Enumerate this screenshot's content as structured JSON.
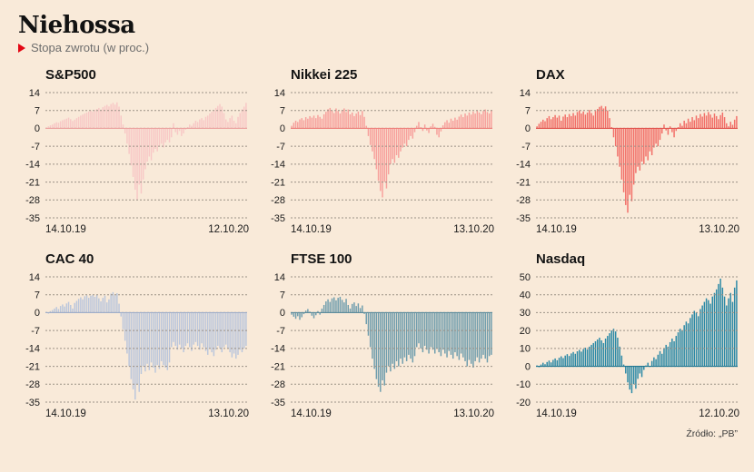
{
  "page": {
    "title": "Niehossa",
    "subtitle": "Stopa zwrotu (w proc.)",
    "source": "Źródło: „PB”",
    "background": "#f9ead9",
    "accent": "#e30613",
    "gridline_color": "#9b9186"
  },
  "chart_data": [
    {
      "type": "bar",
      "title": "S&P500",
      "x_start": "14.10.19",
      "x_end": "12.10.20",
      "ylabel": "",
      "yticks": [
        14,
        7,
        0,
        -7,
        -14,
        -21,
        -28,
        -35
      ],
      "ylim": [
        -35,
        14
      ],
      "grid": true,
      "color": "#f8c8c6",
      "baseline_color": "#eca3a0",
      "values": [
        0.3,
        0.8,
        1.2,
        1.5,
        2.0,
        2.4,
        2.2,
        2.8,
        3.2,
        3.5,
        3.8,
        4.2,
        3.6,
        2.9,
        3.4,
        4.0,
        4.5,
        5.0,
        5.4,
        5.8,
        6.2,
        6.6,
        7.0,
        6.5,
        7.2,
        7.6,
        8.0,
        7.4,
        8.3,
        8.8,
        9.2,
        8.6,
        9.5,
        10.0,
        9.3,
        10.2,
        8.5,
        5.0,
        1.5,
        -2.0,
        -6.0,
        -10.0,
        -14.5,
        -19.0,
        -24.0,
        -28.0,
        -22.0,
        -25.5,
        -20.0,
        -16.0,
        -13.0,
        -11.0,
        -12.5,
        -9.5,
        -8.0,
        -9.0,
        -7.0,
        -6.0,
        -7.5,
        -5.5,
        -4.5,
        -5.5,
        -3.5,
        2.0,
        -1.5,
        -2.5,
        -1.0,
        -3.0,
        -2.0,
        -0.5,
        0.5,
        1.5,
        1.0,
        2.0,
        3.0,
        2.5,
        3.5,
        4.0,
        3.2,
        4.5,
        5.0,
        5.8,
        6.5,
        7.2,
        8.0,
        8.8,
        9.5,
        8.5,
        6.0,
        3.5,
        2.5,
        4.0,
        5.0,
        3.0,
        2.0,
        4.5,
        6.0,
        7.5,
        8.5,
        10.0
      ]
    },
    {
      "type": "bar",
      "title": "Nikkei 225",
      "x_start": "14.10.19",
      "x_end": "13.10.20",
      "ylabel": "",
      "yticks": [
        14,
        7,
        0,
        -7,
        -14,
        -21,
        -28,
        -35
      ],
      "ylim": [
        -35,
        14
      ],
      "grid": true,
      "color": "#f7a09c",
      "baseline_color": "#ee827d",
      "values": [
        1.0,
        2.2,
        3.0,
        2.5,
        3.5,
        4.0,
        3.2,
        4.4,
        3.8,
        4.8,
        4.2,
        5.0,
        4.0,
        5.2,
        4.5,
        3.8,
        5.5,
        6.5,
        7.5,
        8.0,
        7.0,
        6.0,
        7.8,
        6.8,
        5.8,
        7.2,
        7.8,
        6.4,
        7.4,
        5.5,
        6.2,
        4.8,
        5.8,
        6.6,
        5.2,
        6.8,
        4.5,
        1.0,
        -3.0,
        -6.5,
        -9.0,
        -12.0,
        -16.0,
        -20.5,
        -24.5,
        -27.0,
        -21.0,
        -23.5,
        -18.0,
        -14.0,
        -12.0,
        -13.5,
        -10.5,
        -11.5,
        -9.0,
        -7.5,
        -6.0,
        -7.0,
        -4.5,
        -3.0,
        -4.0,
        -1.5,
        1.0,
        2.5,
        0.5,
        -1.0,
        1.5,
        -0.8,
        -1.8,
        0.8,
        1.8,
        0.6,
        -2.5,
        -3.5,
        -1.2,
        1.2,
        2.4,
        3.2,
        2.2,
        3.8,
        3.0,
        4.2,
        3.4,
        4.6,
        5.4,
        4.4,
        5.8,
        5.0,
        6.2,
        5.4,
        6.6,
        5.8,
        7.0,
        6.2,
        5.5,
        6.8,
        7.4,
        6.4,
        5.8,
        7.2
      ]
    },
    {
      "type": "bar",
      "title": "DAX",
      "x_start": "14.10.19",
      "x_end": "13.10.20",
      "ylabel": "",
      "yticks": [
        14,
        7,
        0,
        -7,
        -14,
        -21,
        -28,
        -35
      ],
      "ylim": [
        -35,
        14
      ],
      "grid": true,
      "color": "#f26f68",
      "baseline_color": "#e2554f",
      "values": [
        0.8,
        1.8,
        2.6,
        3.4,
        2.8,
        4.0,
        4.8,
        3.6,
        4.4,
        5.2,
        4.2,
        5.0,
        3.0,
        4.6,
        5.4,
        4.4,
        5.6,
        4.8,
        6.0,
        5.0,
        6.4,
        7.0,
        5.8,
        6.6,
        5.4,
        6.2,
        7.2,
        6.0,
        5.0,
        6.8,
        7.6,
        8.4,
        8.8,
        7.8,
        8.6,
        7.0,
        4.0,
        0.5,
        -3.5,
        -7.0,
        -11.0,
        -15.0,
        -20.0,
        -25.0,
        -30.0,
        -33.0,
        -26.0,
        -28.5,
        -22.0,
        -17.5,
        -15.0,
        -16.5,
        -13.0,
        -14.0,
        -11.0,
        -12.5,
        -9.0,
        -10.5,
        -7.5,
        -6.0,
        -7.0,
        -4.5,
        -2.0,
        1.5,
        -0.8,
        -2.5,
        0.8,
        -1.5,
        -3.5,
        -1.0,
        0.5,
        2.0,
        1.0,
        3.0,
        2.0,
        3.8,
        2.6,
        4.4,
        3.2,
        5.0,
        4.0,
        5.6,
        4.6,
        6.0,
        5.0,
        6.4,
        5.4,
        4.2,
        5.8,
        4.8,
        3.6,
        5.2,
        6.2,
        4.4,
        2.0,
        0.8,
        2.6,
        1.4,
        3.4,
        4.8
      ]
    },
    {
      "type": "bar",
      "title": "CAC 40",
      "x_start": "14.10.19",
      "x_end": "13.10.20",
      "ylabel": "",
      "yticks": [
        14,
        7,
        0,
        -7,
        -14,
        -21,
        -28,
        -35
      ],
      "ylim": [
        -35,
        14
      ],
      "grid": true,
      "color": "#bac6dc",
      "baseline_color": "#9fadc8",
      "values": [
        0.3,
        -0.4,
        0.6,
        1.0,
        1.6,
        2.2,
        1.4,
        2.6,
        3.2,
        2.4,
        3.6,
        4.2,
        3.0,
        1.6,
        3.8,
        4.6,
        5.4,
        6.0,
        5.2,
        6.4,
        6.8,
        5.8,
        6.6,
        7.0,
        6.2,
        6.9,
        5.6,
        4.4,
        5.8,
        6.6,
        4.0,
        5.2,
        7.4,
        8.0,
        6.8,
        7.6,
        3.5,
        -1.5,
        -6.5,
        -11.0,
        -16.0,
        -21.0,
        -26.0,
        -30.0,
        -34.0,
        -28.0,
        -31.0,
        -24.0,
        -21.0,
        -23.0,
        -20.0,
        -22.5,
        -19.5,
        -21.5,
        -23.5,
        -20.5,
        -22.0,
        -19.0,
        -20.5,
        -21.5,
        -22.5,
        -19.5,
        -13.5,
        -11.5,
        -13.0,
        -14.5,
        -12.5,
        -14.0,
        -15.5,
        -13.0,
        -12.0,
        -13.5,
        -15.0,
        -12.5,
        -11.5,
        -13.0,
        -14.5,
        -12.0,
        -13.5,
        -15.0,
        -16.5,
        -14.0,
        -15.5,
        -17.0,
        -14.5,
        -13.0,
        -14.0,
        -15.5,
        -13.5,
        -12.5,
        -14.0,
        -15.5,
        -17.5,
        -16.0,
        -18.0,
        -16.5,
        -14.5,
        -15.5,
        -14.0,
        -13.0
      ]
    },
    {
      "type": "bar",
      "title": "FTSE 100",
      "x_start": "14.10.19",
      "x_end": "13.10.20",
      "ylabel": "",
      "yticks": [
        14,
        7,
        0,
        -7,
        -14,
        -21,
        -28,
        -35
      ],
      "ylim": [
        -35,
        14
      ],
      "grid": true,
      "color": "#6f9dad",
      "baseline_color": "#5d8c9c",
      "values": [
        -0.8,
        -1.6,
        -2.4,
        -1.4,
        -2.8,
        -1.8,
        -0.6,
        0.8,
        1.4,
        0.4,
        -1.2,
        -2.2,
        -1.0,
        0.6,
        -0.8,
        1.6,
        3.0,
        4.4,
        5.2,
        4.2,
        5.6,
        6.0,
        4.8,
        5.8,
        6.2,
        5.0,
        4.0,
        5.4,
        3.0,
        1.6,
        3.4,
        4.0,
        2.6,
        3.6,
        1.8,
        2.8,
        -0.5,
        -4.5,
        -9.0,
        -13.5,
        -18.0,
        -22.0,
        -26.0,
        -29.0,
        -31.0,
        -26.5,
        -28.5,
        -23.5,
        -21.0,
        -23.0,
        -20.0,
        -22.0,
        -19.0,
        -21.0,
        -18.0,
        -20.0,
        -17.5,
        -19.0,
        -16.5,
        -18.0,
        -19.5,
        -17.0,
        -13.5,
        -12.0,
        -14.0,
        -15.5,
        -13.0,
        -14.5,
        -16.0,
        -13.5,
        -14.5,
        -16.0,
        -14.0,
        -15.5,
        -17.0,
        -14.5,
        -16.0,
        -17.5,
        -15.0,
        -16.5,
        -18.0,
        -15.5,
        -17.0,
        -18.5,
        -16.0,
        -17.5,
        -19.0,
        -21.0,
        -18.5,
        -20.0,
        -21.5,
        -19.0,
        -17.5,
        -19.5,
        -18.0,
        -16.5,
        -18.0,
        -19.5,
        -17.0,
        -16.5
      ]
    },
    {
      "type": "bar",
      "title": "Nasdaq",
      "x_start": "14.10.19",
      "x_end": "12.10.20",
      "ylabel": "",
      "yticks": [
        50,
        40,
        30,
        20,
        10,
        0,
        -10,
        -20
      ],
      "ylim": [
        -20,
        50
      ],
      "grid": true,
      "color": "#2b89a6",
      "baseline_color": "#1f7691",
      "values": [
        0.5,
        -0.5,
        1.0,
        2.0,
        1.2,
        2.4,
        3.2,
        2.2,
        3.6,
        4.4,
        3.4,
        4.8,
        5.6,
        4.6,
        6.0,
        6.8,
        5.8,
        7.2,
        8.0,
        7.0,
        8.4,
        9.2,
        8.2,
        9.6,
        10.4,
        9.4,
        11.0,
        12.0,
        13.0,
        14.0,
        15.0,
        16.0,
        14.5,
        13.0,
        15.5,
        17.0,
        18.5,
        20.0,
        21.0,
        19.5,
        16.0,
        11.0,
        6.0,
        1.0,
        -4.0,
        -9.0,
        -13.0,
        -15.0,
        -10.0,
        -12.5,
        -7.0,
        -4.0,
        -6.0,
        -2.0,
        0.5,
        2.0,
        0.0,
        3.0,
        5.0,
        4.0,
        6.5,
        8.5,
        7.0,
        10.0,
        12.0,
        11.0,
        13.5,
        15.5,
        14.0,
        17.0,
        19.0,
        21.0,
        20.0,
        23.0,
        25.0,
        24.0,
        27.0,
        29.0,
        31.0,
        30.0,
        28.0,
        32.0,
        34.0,
        36.0,
        38.0,
        37.0,
        35.0,
        39.0,
        41.0,
        43.0,
        46.0,
        49.0,
        44.0,
        39.0,
        34.0,
        38.0,
        41.0,
        36.0,
        44.0,
        48.0
      ]
    }
  ]
}
